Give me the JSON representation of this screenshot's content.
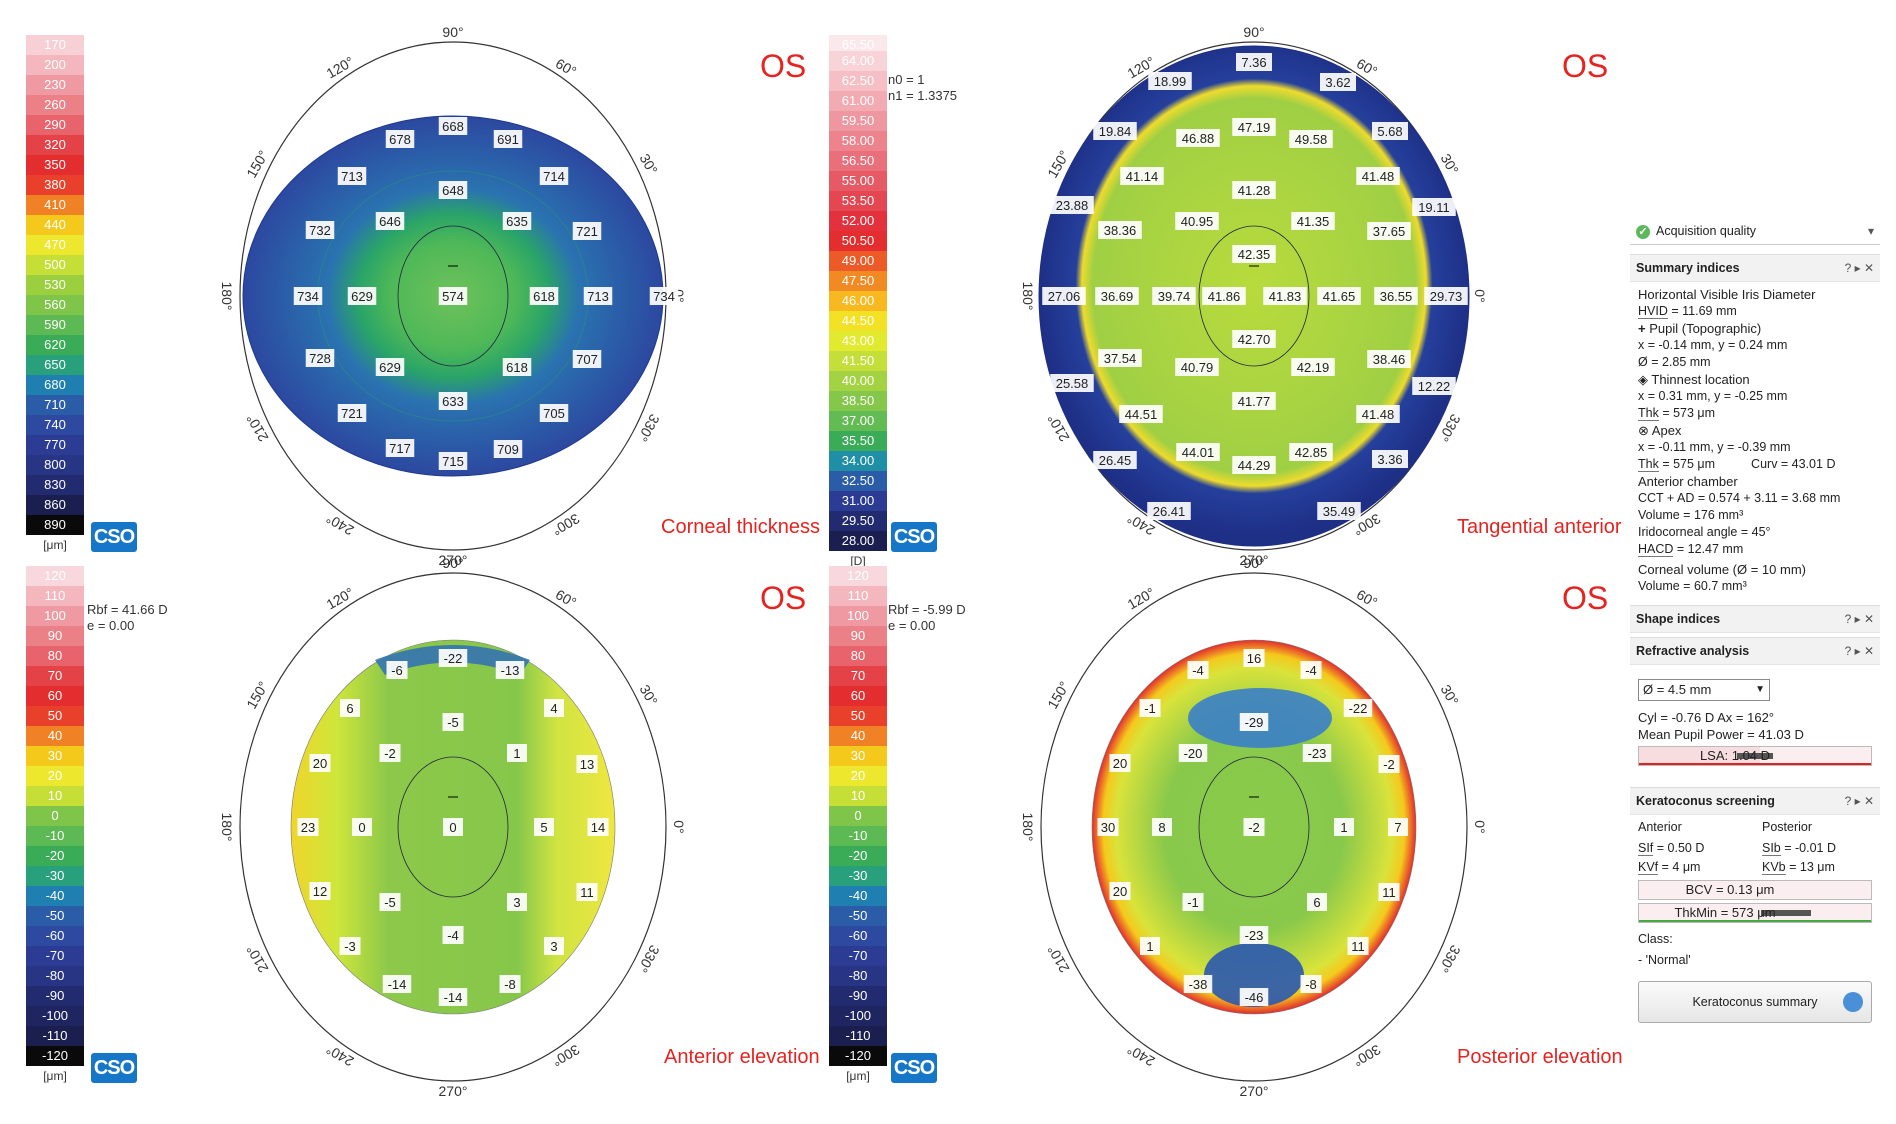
{
  "scales": [
    {
      "key": "thickness",
      "unit": "[μm]",
      "values": [
        "170",
        "200",
        "230",
        "260",
        "290",
        "320",
        "350",
        "380",
        "410",
        "440",
        "470",
        "500",
        "530",
        "560",
        "590",
        "620",
        "650",
        "680",
        "710",
        "740",
        "770",
        "800",
        "830",
        "860",
        "890"
      ],
      "colors": [
        "#f6d0d4",
        "#f3b7bd",
        "#ef9aa2",
        "#ec8087",
        "#e8636b",
        "#e54248",
        "#e32d2e",
        "#e8402a",
        "#f08225",
        "#f5c91c",
        "#ede72d",
        "#c6df37",
        "#9ccf3e",
        "#7ec54a",
        "#5db954",
        "#3aac57",
        "#27a07b",
        "#1f7fb0",
        "#2a5ca8",
        "#2d4aa0",
        "#2c3c95",
        "#283585",
        "#232b70",
        "#1a1f50",
        "#0a0a0a"
      ]
    },
    {
      "key": "curvature",
      "unit": "[D]",
      "values": [
        "65.50",
        "64.00",
        "62.50",
        "61.00",
        "59.50",
        "58.00",
        "56.50",
        "55.00",
        "53.50",
        "52.00",
        "50.50",
        "49.00",
        "47.50",
        "46.00",
        "44.50",
        "43.00",
        "41.50",
        "40.00",
        "38.50",
        "37.00",
        "35.50",
        "34.00",
        "32.50",
        "31.00",
        "29.50",
        "28.00"
      ],
      "colors": [
        "#fbe8ea",
        "#f8d4d8",
        "#f5bfc5",
        "#f2abb3",
        "#ef97a0",
        "#ec838d",
        "#e96f7b",
        "#e65a66",
        "#e44652",
        "#e3323d",
        "#e32d2e",
        "#ec5a27",
        "#f28a23",
        "#f7b91f",
        "#f3e125",
        "#e2ea2f",
        "#c4de3a",
        "#a3d342",
        "#84c74b",
        "#63bb53",
        "#3aac57",
        "#1f8fa5",
        "#2a5ca8",
        "#2c3c95",
        "#232b70",
        "#1a1f50"
      ]
    },
    {
      "key": "ant_elevation",
      "unit": "[μm]",
      "values": [
        "120",
        "110",
        "100",
        "90",
        "80",
        "70",
        "60",
        "50",
        "40",
        "30",
        "20",
        "10",
        "0",
        "-10",
        "-20",
        "-30",
        "-40",
        "-50",
        "-60",
        "-70",
        "-80",
        "-90",
        "-100",
        "-110",
        "-120"
      ],
      "colors": [
        "#f8d8dc",
        "#f3b7bd",
        "#ef9aa2",
        "#ec8087",
        "#e8636b",
        "#e54248",
        "#e32d2e",
        "#e8402a",
        "#f08225",
        "#f5c91c",
        "#ede72d",
        "#c6df37",
        "#7ec54a",
        "#5db954",
        "#3aac57",
        "#27a07b",
        "#1f7fb0",
        "#2a5ca8",
        "#2d4aa0",
        "#2c3c95",
        "#283585",
        "#232b70",
        "#1e2560",
        "#1a1f50",
        "#0a0a0a"
      ]
    },
    {
      "key": "post_elevation",
      "unit": "[μm]",
      "values": [
        "120",
        "110",
        "100",
        "90",
        "80",
        "70",
        "60",
        "50",
        "40",
        "30",
        "20",
        "10",
        "0",
        "-10",
        "-20",
        "-30",
        "-40",
        "-50",
        "-60",
        "-70",
        "-80",
        "-90",
        "-100",
        "-110",
        "-120"
      ],
      "colors": [
        "#f8d8dc",
        "#f3b7bd",
        "#ef9aa2",
        "#ec8087",
        "#e8636b",
        "#e54248",
        "#e32d2e",
        "#e8402a",
        "#f08225",
        "#f5c91c",
        "#ede72d",
        "#c6df37",
        "#7ec54a",
        "#5db954",
        "#3aac57",
        "#27a07b",
        "#1f7fb0",
        "#2a5ca8",
        "#2d4aa0",
        "#2c3c95",
        "#283585",
        "#232b70",
        "#1e2560",
        "#1a1f50",
        "#0a0a0a"
      ]
    }
  ],
  "logo": "CSO",
  "eye_label": "OS",
  "axis_labels": {
    "a90": "90°",
    "a120": "120°",
    "a60": "60°",
    "a150": "150°",
    "a30": "30°",
    "a180": "180°",
    "a0": "0°",
    "a210": "210°",
    "a330": "330°",
    "a240": "240°",
    "a300": "300°",
    "a270": "270°"
  },
  "maps": [
    {
      "key": "thickness",
      "title": "Corneal thickness",
      "values": [
        {
          "t": "668"
        },
        {
          "t": "678"
        },
        {
          "t": "691"
        },
        {
          "t": "713"
        },
        {
          "t": "648"
        },
        {
          "t": "714"
        },
        {
          "t": "732"
        },
        {
          "t": "646"
        },
        {
          "t": "635"
        },
        {
          "t": "721"
        },
        {
          "t": "734"
        },
        {
          "t": "629"
        },
        {
          "t": "574"
        },
        {
          "t": "618"
        },
        {
          "t": "713"
        },
        {
          "t": "734"
        },
        {
          "t": "728"
        },
        {
          "t": "629"
        },
        {
          "t": "618"
        },
        {
          "t": "707"
        },
        {
          "t": "633"
        },
        {
          "t": "721"
        },
        {
          "t": "705"
        },
        {
          "t": "717"
        },
        {
          "t": "715"
        },
        {
          "t": "709"
        }
      ]
    },
    {
      "key": "tangential",
      "title": "Tangential anterior",
      "values": [
        {
          "t": "7.36"
        },
        {
          "t": "18.99"
        },
        {
          "t": "3.62"
        },
        {
          "t": "19.84"
        },
        {
          "t": "47.19"
        },
        {
          "t": "46.88"
        },
        {
          "t": "49.58"
        },
        {
          "t": "5.68"
        },
        {
          "t": "41.14"
        },
        {
          "t": "41.28"
        },
        {
          "t": "41.48"
        },
        {
          "t": "23.88"
        },
        {
          "t": "19.11"
        },
        {
          "t": "38.36"
        },
        {
          "t": "40.95"
        },
        {
          "t": "41.35"
        },
        {
          "t": "37.65"
        },
        {
          "t": "42.35"
        },
        {
          "t": "27.06"
        },
        {
          "t": "36.69"
        },
        {
          "t": "39.74"
        },
        {
          "t": "41.86"
        },
        {
          "t": "41.83"
        },
        {
          "t": "41.65"
        },
        {
          "t": "36.55"
        },
        {
          "t": "29.73"
        },
        {
          "t": "42.70"
        },
        {
          "t": "37.54"
        },
        {
          "t": "40.79"
        },
        {
          "t": "42.19"
        },
        {
          "t": "38.46"
        },
        {
          "t": "25.58"
        },
        {
          "t": "12.22"
        },
        {
          "t": "41.77"
        },
        {
          "t": "44.51"
        },
        {
          "t": "41.48"
        },
        {
          "t": "44.01"
        },
        {
          "t": "44.29"
        },
        {
          "t": "42.85"
        },
        {
          "t": "26.45"
        },
        {
          "t": "3.36"
        },
        {
          "t": "26.41"
        },
        {
          "t": "35.49"
        }
      ],
      "params": "n0 = 1\nn1 = 1.3375"
    },
    {
      "key": "ant_elevation",
      "title": "Anterior elevation",
      "values": [
        {
          "t": "-22"
        },
        {
          "t": "-6"
        },
        {
          "t": "-13"
        },
        {
          "t": "6"
        },
        {
          "t": "4"
        },
        {
          "t": "-5"
        },
        {
          "t": "20"
        },
        {
          "t": "-2"
        },
        {
          "t": "1"
        },
        {
          "t": "13"
        },
        {
          "t": "23"
        },
        {
          "t": "0"
        },
        {
          "t": "0"
        },
        {
          "t": "5"
        },
        {
          "t": "14"
        },
        {
          "t": "12"
        },
        {
          "t": "-5"
        },
        {
          "t": "3"
        },
        {
          "t": "11"
        },
        {
          "t": "-4"
        },
        {
          "t": "-3"
        },
        {
          "t": "3"
        },
        {
          "t": "-14"
        },
        {
          "t": "-8"
        },
        {
          "t": "-14"
        }
      ],
      "params": "Rbf = 41.66 D\ne = 0.00"
    },
    {
      "key": "post_elevation",
      "title": "Posterior elevation",
      "values": [
        {
          "t": "16"
        },
        {
          "t": "-4"
        },
        {
          "t": "-4"
        },
        {
          "t": "-1"
        },
        {
          "t": "-22"
        },
        {
          "t": "-29"
        },
        {
          "t": "20"
        },
        {
          "t": "-20"
        },
        {
          "t": "-23"
        },
        {
          "t": "-2"
        },
        {
          "t": "30"
        },
        {
          "t": "8"
        },
        {
          "t": "-2"
        },
        {
          "t": "1"
        },
        {
          "t": "7"
        },
        {
          "t": "20"
        },
        {
          "t": "-1"
        },
        {
          "t": "6"
        },
        {
          "t": "11"
        },
        {
          "t": "-23"
        },
        {
          "t": "1"
        },
        {
          "t": "11"
        },
        {
          "t": "-38"
        },
        {
          "t": "-46"
        },
        {
          "t": "-8"
        }
      ],
      "params": "Rbf = -5.99 D\ne = 0.00"
    }
  ],
  "panel": {
    "acq_title": "Acquisition quality",
    "summary": {
      "title": "Summary indices",
      "controls": "?  ▸  ✕",
      "hvid_title": "Horizontal Visible Iris Diameter",
      "hvid_label": "HVID",
      "hvid_value": " = 11.69 mm",
      "pupil_title": "Pupil (Topographic)",
      "pupil_xy": "x = -0.14 mm, y = 0.24 mm",
      "pupil_d": "Ø = 2.85 mm",
      "thin_title": "Thinnest location",
      "thin_xy": "x = 0.31 mm, y = -0.25 mm",
      "thin_label": "Thk",
      "thin_value": " = 573 μm",
      "apex_title": "Apex",
      "apex_xy": "x = -0.11 mm, y = -0.39 mm",
      "apex_thk_label": "Thk",
      "apex_thk": " = 575 μm",
      "apex_curv": "Curv = 43.01 D",
      "ac_title": "Anterior chamber",
      "ac_cct": "CCT + AD = 0.574 + 3.11 = 3.68 mm",
      "ac_volume": "Volume = 176 mm³",
      "ac_angle": "Iridocorneal angle = 45°",
      "ac_hacd_label": "HACD",
      "ac_hacd": " = 12.47 mm",
      "cv_title": "Corneal volume (Ø = 10 mm)",
      "cv_value": "Volume = 60.7 mm³"
    },
    "shape": {
      "title": "Shape indices"
    },
    "refractive": {
      "title": "Refractive analysis",
      "diameter": "Ø = 4.5 mm",
      "cyl": "Cyl = -0.76 D Ax = 162°",
      "mpp": "Mean Pupil Power = 41.03 D",
      "lsa": "LSA: 1.04 D"
    },
    "kerato": {
      "title": "Keratoconus screening",
      "anterior": "Anterior",
      "posterior": "Posterior",
      "sif_label": "SIf",
      "sif": " = 0.50 D",
      "sib_label": "SIb",
      "sib": " = -0.01 D",
      "kvf_label": "KVf",
      "kvf": " = 4 μm",
      "kvb_label": "KVb",
      "kvb": " = 13 μm",
      "bcv": "BCV = 0.13 μm",
      "thkmin": "ThkMin = 573 μm",
      "class_label": "Class:",
      "class_value": "- 'Normal'",
      "button": "Keratoconus summary"
    }
  }
}
